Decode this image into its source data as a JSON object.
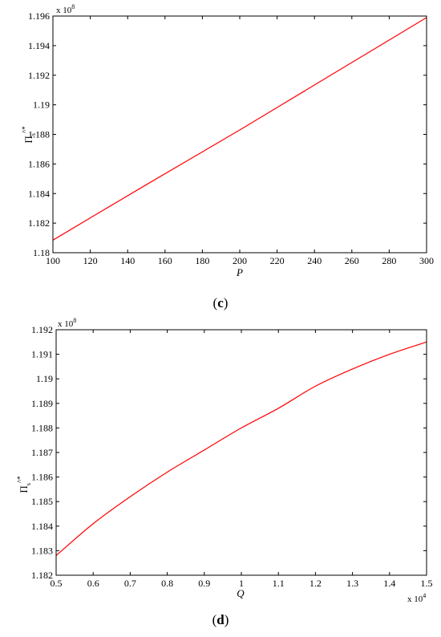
{
  "chart_data": [
    {
      "type": "line",
      "panel_label": "c",
      "xlabel": "P",
      "ylabel_base": "Π",
      "ylabel_sub": "s",
      "ylabel_sup": "^*",
      "multiplier_base": "x 10",
      "multiplier_exp": "8",
      "xlim": [
        100,
        300
      ],
      "ylim": [
        1.18,
        1.196
      ],
      "xticks": [
        100,
        120,
        140,
        160,
        180,
        200,
        220,
        240,
        260,
        280,
        300
      ],
      "yticks": [
        1.18,
        1.182,
        1.184,
        1.186,
        1.188,
        1.19,
        1.192,
        1.194,
        1.196
      ],
      "ytick_labels": [
        "1.18",
        "1.182",
        "1.184",
        "1.186",
        "1.188",
        "1.19",
        "1.192",
        "1.194",
        "1.196"
      ],
      "series": [
        {
          "color": "#ff0000",
          "x": [
            100,
            150,
            200,
            250,
            300
          ],
          "y": [
            1.18085,
            1.1846,
            1.1883,
            1.1921,
            1.1959
          ]
        }
      ]
    },
    {
      "type": "line",
      "panel_label": "d",
      "xlabel": "Q",
      "ylabel_base": "Π",
      "ylabel_sub": "s",
      "ylabel_sup": "^*",
      "multiplier_base": "x 10",
      "multiplier_exp": "8",
      "x_multiplier_base": "x 10",
      "x_multiplier_exp": "4",
      "xlim": [
        0.5,
        1.5
      ],
      "ylim": [
        1.182,
        1.192
      ],
      "xticks": [
        0.5,
        0.6,
        0.7,
        0.8,
        0.9,
        1,
        1.1,
        1.2,
        1.3,
        1.4,
        1.5
      ],
      "xtick_labels": [
        "0.5",
        "0.6",
        "0.7",
        "0.8",
        "0.9",
        "1",
        "1.1",
        "1.2",
        "1.3",
        "1.4",
        "1.5"
      ],
      "yticks": [
        1.182,
        1.183,
        1.184,
        1.185,
        1.186,
        1.187,
        1.188,
        1.189,
        1.19,
        1.191,
        1.192
      ],
      "ytick_labels": [
        "1.182",
        "1.183",
        "1.184",
        "1.185",
        "1.186",
        "1.187",
        "1.188",
        "1.189",
        "1.19",
        "1.191",
        "1.192"
      ],
      "series": [
        {
          "color": "#ff0000",
          "x": [
            0.5,
            0.6,
            0.7,
            0.8,
            0.9,
            1.0,
            1.1,
            1.2,
            1.3,
            1.4,
            1.5
          ],
          "y": [
            1.1828,
            1.1841,
            1.1852,
            1.1862,
            1.1871,
            1.188,
            1.1888,
            1.1897,
            1.1904,
            1.191,
            1.1915
          ]
        }
      ]
    }
  ]
}
